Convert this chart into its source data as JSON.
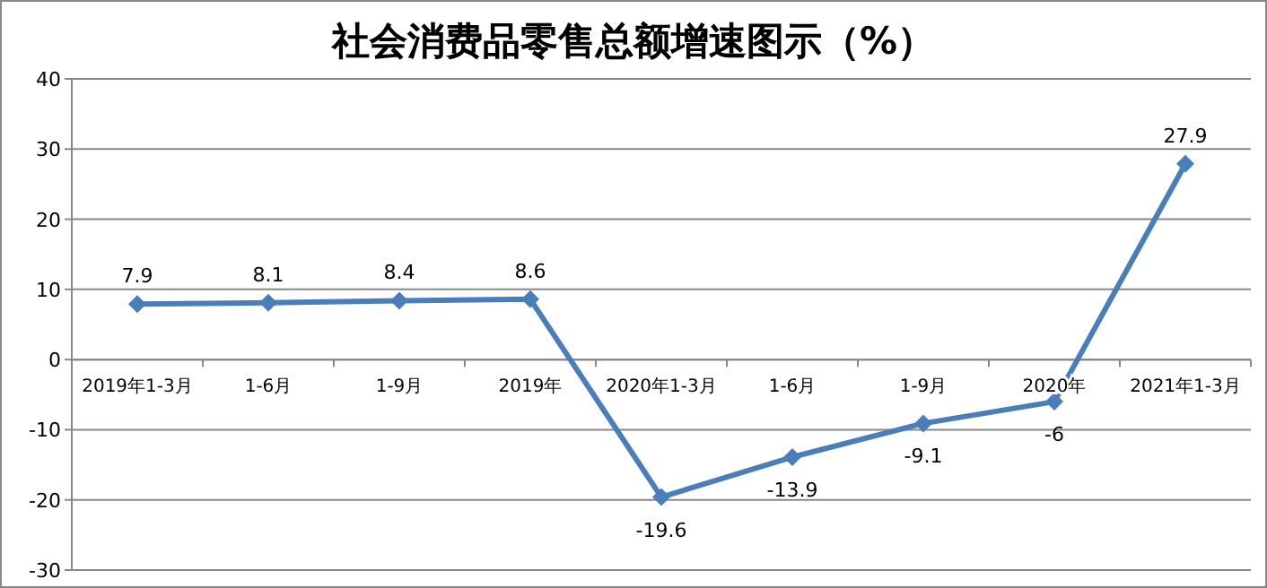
{
  "chart_data": {
    "type": "line",
    "title": "社会消费品零售总额增速图示（%）",
    "categories": [
      "2019年1-3月",
      "1-6月",
      "1-9月",
      "2019年",
      "2020年1-3月",
      "1-6月",
      "1-9月",
      "2020年",
      "2021年1-3月"
    ],
    "series": [
      {
        "color": "#4a7ebb",
        "values": [
          7.9,
          8.1,
          8.4,
          8.6,
          -19.6,
          -13.9,
          -9.1,
          -6,
          27.9
        ]
      }
    ],
    "ylim": [
      -30,
      40
    ],
    "yticks": [
      -30,
      -20,
      -10,
      0,
      10,
      20,
      30,
      40
    ],
    "grid": "y",
    "marker": "diamond",
    "line_style": "solid",
    "data_labels": true
  }
}
